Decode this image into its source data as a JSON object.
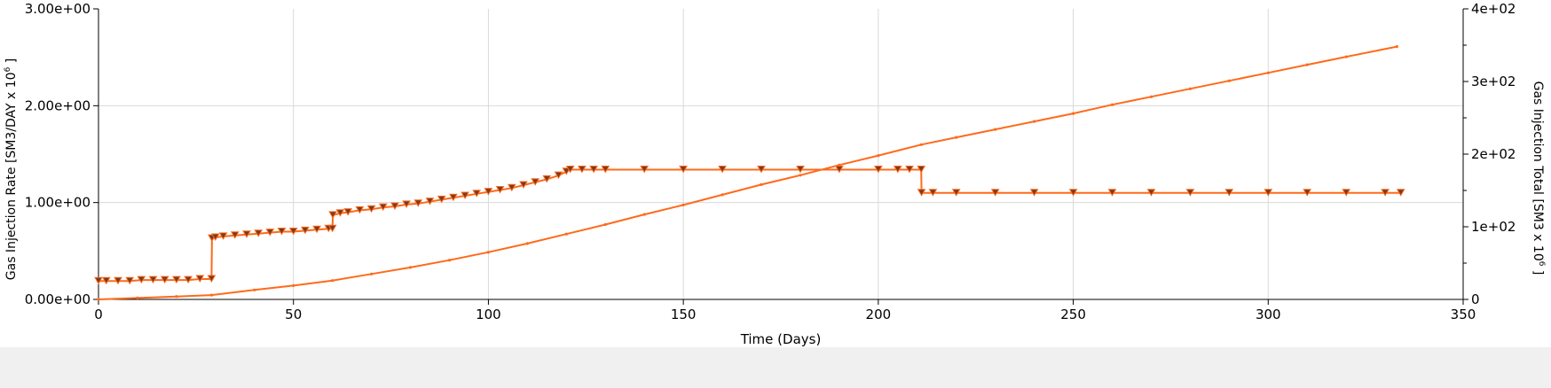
{
  "chart_data": {
    "type": "line",
    "xlabel": "Time (Days)",
    "ylabel_left_main": "Gas Injection Rate [SM3/DAY x 10",
    "ylabel_left_sup": "6",
    "ylabel_left_tail": " ]",
    "ylabel_right_main": "Gas Injection Total [SM3 x 10",
    "ylabel_right_sup": "6",
    "ylabel_right_tail": " ]",
    "xlim": [
      0,
      350
    ],
    "ylim_left": [
      0,
      3
    ],
    "ylim_right": [
      0,
      400
    ],
    "x_ticks": [
      0,
      50,
      100,
      150,
      200,
      250,
      300,
      350
    ],
    "x_tick_labels": [
      "0",
      "50",
      "100",
      "150",
      "200",
      "250",
      "300",
      "350"
    ],
    "y_left_ticks": [
      0,
      1,
      2,
      3
    ],
    "y_left_tick_labels": [
      "0.00e+00",
      "1.00e+00",
      "2.00e+00",
      "3.00e+00"
    ],
    "y_right_ticks": [
      0,
      100,
      200,
      300,
      400
    ],
    "y_right_tick_labels": [
      "0",
      "1e+02",
      "2e+02",
      "3e+02",
      "4e+02"
    ],
    "grid": true,
    "series_color": "#ff6a1a",
    "marker_fill": "#7a3a22",
    "series": [
      {
        "axis": "left",
        "style": "step-with-markers",
        "x": [
          0,
          2,
          5,
          8,
          11,
          14,
          17,
          20,
          23,
          26,
          29,
          29.1,
          30,
          32,
          35,
          38,
          41,
          44,
          47,
          50,
          53,
          56,
          59,
          60,
          60.1,
          62,
          64,
          67,
          70,
          73,
          76,
          79,
          82,
          85,
          88,
          91,
          94,
          97,
          100,
          103,
          106,
          109,
          112,
          115,
          118,
          120,
          121,
          124,
          127,
          130,
          140,
          150,
          160,
          170,
          180,
          190,
          200,
          205,
          208,
          211,
          211.1,
          214,
          220,
          230,
          240,
          250,
          260,
          270,
          280,
          290,
          300,
          310,
          320,
          330,
          334
        ],
        "values": [
          0.19,
          0.19,
          0.19,
          0.19,
          0.2,
          0.2,
          0.2,
          0.2,
          0.2,
          0.21,
          0.21,
          0.63,
          0.64,
          0.65,
          0.66,
          0.67,
          0.68,
          0.69,
          0.7,
          0.7,
          0.71,
          0.72,
          0.73,
          0.73,
          0.87,
          0.89,
          0.9,
          0.92,
          0.93,
          0.95,
          0.96,
          0.98,
          0.99,
          1.01,
          1.03,
          1.05,
          1.07,
          1.09,
          1.11,
          1.13,
          1.15,
          1.18,
          1.21,
          1.24,
          1.28,
          1.32,
          1.34,
          1.34,
          1.34,
          1.34,
          1.34,
          1.34,
          1.34,
          1.34,
          1.34,
          1.34,
          1.34,
          1.34,
          1.34,
          1.34,
          1.1,
          1.1,
          1.1,
          1.1,
          1.1,
          1.1,
          1.1,
          1.1,
          1.1,
          1.1,
          1.1,
          1.1,
          1.1,
          1.1,
          1.1
        ]
      },
      {
        "axis": "right",
        "style": "line",
        "x": [
          0,
          10,
          20,
          29,
          40,
          50,
          60,
          70,
          80,
          90,
          100,
          110,
          120,
          130,
          140,
          150,
          160,
          170,
          180,
          190,
          200,
          211,
          220,
          230,
          240,
          250,
          260,
          270,
          280,
          290,
          300,
          310,
          320,
          333
        ],
        "values": [
          0,
          2,
          4,
          6,
          13,
          19,
          26,
          35,
          44,
          54,
          65,
          77,
          90,
          103,
          117,
          130,
          144,
          158,
          171,
          185,
          198,
          213,
          223,
          234,
          245,
          256,
          268,
          279,
          290,
          301,
          312,
          323,
          334,
          348
        ]
      }
    ]
  }
}
